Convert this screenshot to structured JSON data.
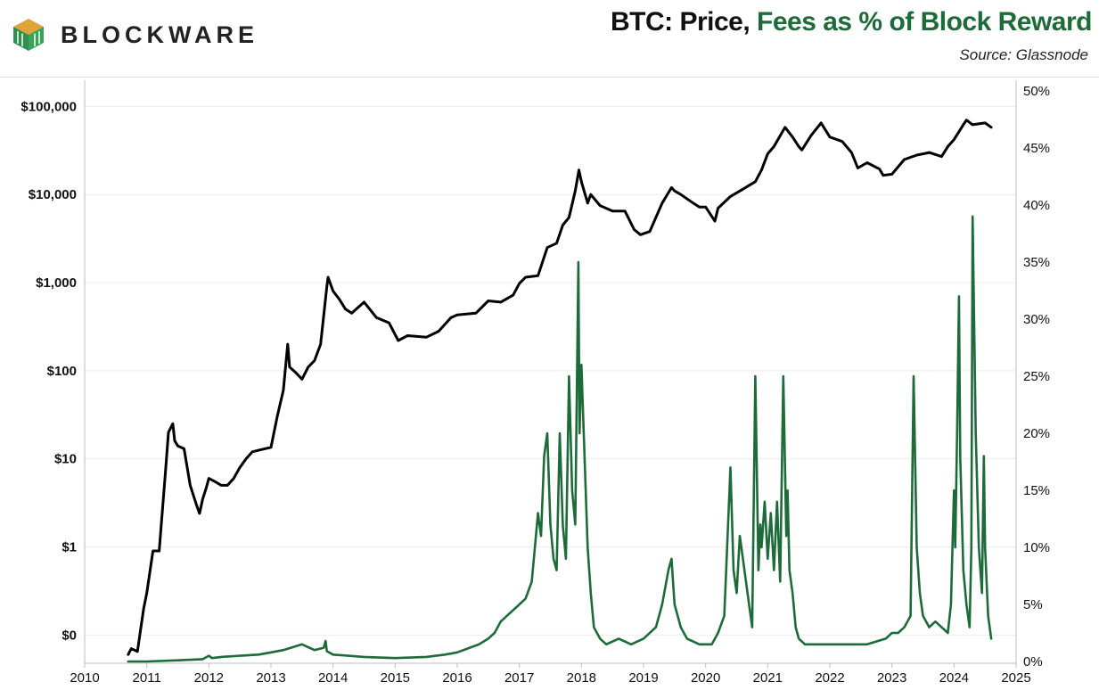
{
  "header": {
    "brand": "BLOCKWARE",
    "title_part1": "BTC: Price, ",
    "title_part2": "Fees as % of Block Reward",
    "source": "Source: Glassnode"
  },
  "colors": {
    "price_line": "#000000",
    "fees_line": "#1e6b3a",
    "logo_primary": "#2f8f4e",
    "logo_secondary": "#e0a33a",
    "grid": "#ececec"
  },
  "chart_data": {
    "type": "line",
    "title": "BTC: Price, Fees as % of Block Reward",
    "grid": true,
    "x_axis": {
      "ticks": [
        2010,
        2011,
        2012,
        2013,
        2014,
        2015,
        2016,
        2017,
        2018,
        2019,
        2020,
        2021,
        2022,
        2023,
        2024,
        2025
      ],
      "range": [
        2010,
        2025
      ]
    },
    "y_left": {
      "scale": "log",
      "range": [
        0.05,
        150000
      ],
      "ticks": [
        {
          "value": 0.1,
          "label": "$0"
        },
        {
          "value": 1,
          "label": "$1"
        },
        {
          "value": 10,
          "label": "$10"
        },
        {
          "value": 100,
          "label": "$100"
        },
        {
          "value": 1000,
          "label": "$1,000"
        },
        {
          "value": 10000,
          "label": "$10,000"
        },
        {
          "value": 100000,
          "label": "$100,000"
        }
      ]
    },
    "y_right": {
      "scale": "linear",
      "range": [
        0,
        50
      ],
      "ticks": [
        {
          "value": 0,
          "label": "0%"
        },
        {
          "value": 5,
          "label": "5%"
        },
        {
          "value": 10,
          "label": "10%"
        },
        {
          "value": 15,
          "label": "15%"
        },
        {
          "value": 20,
          "label": "20%"
        },
        {
          "value": 25,
          "label": "25%"
        },
        {
          "value": 30,
          "label": "30%"
        },
        {
          "value": 35,
          "label": "35%"
        },
        {
          "value": 40,
          "label": "40%"
        },
        {
          "value": 45,
          "label": "45%"
        },
        {
          "value": 50,
          "label": "50%"
        }
      ]
    },
    "series": [
      {
        "name": "Price",
        "axis": "left",
        "x": [
          2010.7,
          2010.75,
          2010.85,
          2010.95,
          2011.0,
          2011.1,
          2011.2,
          2011.3,
          2011.35,
          2011.42,
          2011.45,
          2011.5,
          2011.6,
          2011.7,
          2011.8,
          2011.85,
          2011.9,
          2011.95,
          2012.0,
          2012.1,
          2012.2,
          2012.3,
          2012.4,
          2012.5,
          2012.6,
          2012.7,
          2012.8,
          2012.9,
          2013.0,
          2013.1,
          2013.2,
          2013.27,
          2013.3,
          2013.4,
          2013.5,
          2013.6,
          2013.7,
          2013.8,
          2013.9,
          2013.92,
          2014.0,
          2014.1,
          2014.2,
          2014.3,
          2014.5,
          2014.7,
          2014.9,
          2015.05,
          2015.2,
          2015.5,
          2015.7,
          2015.9,
          2016.0,
          2016.3,
          2016.5,
          2016.7,
          2016.9,
          2017.0,
          2017.1,
          2017.3,
          2017.45,
          2017.6,
          2017.7,
          2017.8,
          2017.9,
          2017.96,
          2018.0,
          2018.1,
          2018.15,
          2018.3,
          2018.5,
          2018.7,
          2018.85,
          2018.95,
          2019.1,
          2019.3,
          2019.45,
          2019.5,
          2019.6,
          2019.8,
          2019.9,
          2020.0,
          2020.15,
          2020.2,
          2020.4,
          2020.6,
          2020.8,
          2020.9,
          2021.0,
          2021.1,
          2021.28,
          2021.4,
          2021.5,
          2021.55,
          2021.7,
          2021.86,
          2022.0,
          2022.2,
          2022.35,
          2022.45,
          2022.6,
          2022.8,
          2022.86,
          2023.0,
          2023.2,
          2023.4,
          2023.6,
          2023.8,
          2023.9,
          2024.0,
          2024.15,
          2024.2,
          2024.3,
          2024.5,
          2024.6
        ],
        "values": [
          0.06,
          0.07,
          0.065,
          0.2,
          0.3,
          0.9,
          0.9,
          7,
          20,
          25,
          16,
          14,
          13,
          5,
          3,
          2.4,
          3.5,
          4.5,
          6,
          5.5,
          5,
          5,
          6,
          8,
          10,
          12,
          12.5,
          13,
          13.5,
          30,
          60,
          200,
          110,
          95,
          80,
          110,
          130,
          200,
          900,
          1150,
          800,
          650,
          500,
          450,
          600,
          400,
          350,
          220,
          250,
          240,
          280,
          400,
          430,
          450,
          620,
          600,
          720,
          980,
          1150,
          1200,
          2500,
          2800,
          4500,
          5500,
          11000,
          19000,
          14000,
          8000,
          10000,
          7500,
          6500,
          6500,
          4000,
          3500,
          3800,
          8000,
          12000,
          11000,
          10000,
          8000,
          7200,
          7200,
          5000,
          7000,
          9500,
          11500,
          14000,
          19000,
          29000,
          35000,
          58000,
          45000,
          35000,
          32000,
          47000,
          65000,
          45000,
          40000,
          30000,
          20000,
          23000,
          19500,
          16500,
          17000,
          25000,
          28000,
          30000,
          27000,
          35000,
          42000,
          62000,
          70000,
          62000,
          65000,
          58000
        ]
      },
      {
        "name": "Fees as % of Block Reward",
        "axis": "right",
        "x": [
          2010.7,
          2011.0,
          2011.5,
          2011.9,
          2012.0,
          2012.05,
          2012.2,
          2012.5,
          2012.8,
          2013.0,
          2013.2,
          2013.5,
          2013.7,
          2013.85,
          2013.88,
          2013.9,
          2014.0,
          2014.5,
          2015.0,
          2015.5,
          2015.8,
          2016.0,
          2016.2,
          2016.35,
          2016.5,
          2016.6,
          2016.7,
          2016.8,
          2016.9,
          2017.0,
          2017.1,
          2017.2,
          2017.25,
          2017.3,
          2017.35,
          2017.4,
          2017.45,
          2017.5,
          2017.55,
          2017.6,
          2017.65,
          2017.7,
          2017.75,
          2017.8,
          2017.85,
          2017.9,
          2017.95,
          2017.97,
          2018.0,
          2018.05,
          2018.1,
          2018.15,
          2018.2,
          2018.3,
          2018.4,
          2018.6,
          2018.8,
          2019.0,
          2019.2,
          2019.3,
          2019.4,
          2019.45,
          2019.5,
          2019.55,
          2019.6,
          2019.7,
          2019.9,
          2020.1,
          2020.2,
          2020.3,
          2020.4,
          2020.45,
          2020.5,
          2020.55,
          2020.6,
          2020.7,
          2020.75,
          2020.8,
          2020.85,
          2020.88,
          2020.9,
          2020.95,
          2021.0,
          2021.05,
          2021.1,
          2021.15,
          2021.2,
          2021.25,
          2021.3,
          2021.32,
          2021.35,
          2021.4,
          2021.45,
          2021.5,
          2021.6,
          2021.8,
          2022.0,
          2022.3,
          2022.6,
          2022.9,
          2023.0,
          2023.1,
          2023.2,
          2023.3,
          2023.35,
          2023.4,
          2023.45,
          2023.5,
          2023.6,
          2023.7,
          2023.8,
          2023.9,
          2023.95,
          2024.0,
          2024.02,
          2024.05,
          2024.08,
          2024.1,
          2024.15,
          2024.2,
          2024.25,
          2024.28,
          2024.3,
          2024.35,
          2024.4,
          2024.45,
          2024.48,
          2024.5,
          2024.55,
          2024.6
        ],
        "values": [
          0,
          0,
          0.1,
          0.2,
          0.5,
          0.3,
          0.4,
          0.5,
          0.6,
          0.8,
          1.0,
          1.5,
          1.0,
          1.2,
          1.8,
          0.9,
          0.6,
          0.4,
          0.3,
          0.4,
          0.6,
          0.8,
          1.2,
          1.5,
          2.0,
          2.5,
          3.5,
          4.0,
          4.5,
          5.0,
          5.5,
          7.0,
          10.0,
          13.0,
          11.0,
          18.0,
          20.0,
          12.0,
          9.0,
          8.0,
          20.0,
          12.0,
          9.0,
          25.0,
          15.0,
          12.0,
          35.0,
          20.0,
          26.0,
          18.0,
          10.0,
          6.0,
          3.0,
          2.0,
          1.5,
          2.0,
          1.5,
          2.0,
          3.0,
          5.0,
          8.0,
          9.0,
          5.0,
          4.0,
          3.0,
          2.0,
          1.5,
          1.5,
          2.5,
          4.0,
          17.0,
          8.0,
          6.0,
          11.0,
          9.0,
          5.0,
          3.0,
          25.0,
          8.0,
          12.0,
          10.0,
          14.0,
          9.0,
          13.0,
          8.0,
          14.0,
          7.0,
          25.0,
          11.0,
          15.0,
          8.0,
          6.0,
          3.0,
          2.0,
          1.5,
          1.5,
          1.5,
          1.5,
          1.5,
          2.0,
          2.5,
          2.5,
          3.0,
          4.0,
          25.0,
          10.0,
          6.0,
          4.0,
          3.0,
          3.5,
          3.0,
          2.5,
          5.0,
          15.0,
          10.0,
          20.0,
          32.0,
          18.0,
          8.0,
          5.0,
          3.0,
          10.0,
          39.0,
          20.0,
          10.0,
          6.0,
          18.0,
          10.0,
          4.0,
          2.0
        ]
      }
    ]
  }
}
